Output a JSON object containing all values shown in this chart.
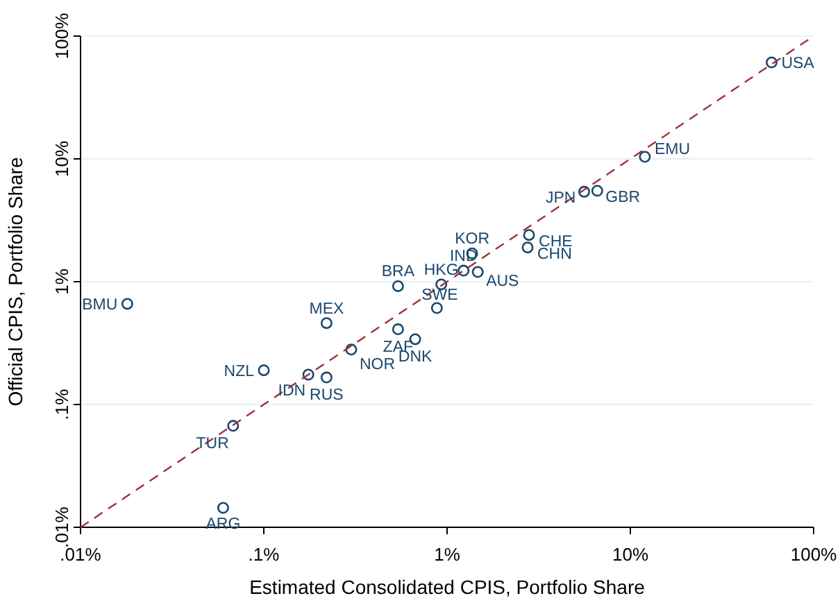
{
  "chart_data": {
    "type": "scatter",
    "xlabel": "Estimated Consolidated CPIS, Portfolio Share",
    "ylabel": "Official CPIS, Portfolio Share",
    "log": "xy",
    "grid": "y",
    "marker": "circle",
    "xlim": [
      0.01,
      100
    ],
    "ylim": [
      0.01,
      100
    ],
    "xticks": [
      {
        "value": 0.01,
        "label": ".01%"
      },
      {
        "value": 0.1,
        "label": ".1%"
      },
      {
        "value": 1,
        "label": "1%"
      },
      {
        "value": 10,
        "label": "10%"
      },
      {
        "value": 100,
        "label": "100%"
      }
    ],
    "yticks": [
      {
        "value": 0.01,
        "label": ".01%"
      },
      {
        "value": 0.1,
        "label": ".1%"
      },
      {
        "value": 1,
        "label": "1%"
      },
      {
        "value": 10,
        "label": "10%"
      },
      {
        "value": 100,
        "label": "100%"
      }
    ],
    "series": [
      {
        "type": "scatter",
        "color": "#1a476f",
        "x": [
          59,
          12,
          5.6,
          6.6,
          2.8,
          2.75,
          1.37,
          1.23,
          1.47,
          0.93,
          0.88,
          0.54,
          0.018,
          0.22,
          0.54,
          0.67,
          0.3,
          0.1,
          0.175,
          0.22,
          0.068,
          0.06
        ],
        "values": [
          61,
          10.4,
          5.4,
          5.5,
          2.4,
          1.9,
          1.7,
          1.23,
          1.2,
          0.95,
          0.61,
          0.92,
          0.66,
          0.46,
          0.41,
          0.34,
          0.28,
          0.19,
          0.175,
          0.166,
          0.067,
          0.0144
        ]
      },
      {
        "type": "line",
        "color": "#a0303a",
        "line_style": "dashed",
        "marker": "none",
        "x": [
          0.01,
          100
        ],
        "values": [
          0.01,
          100
        ]
      }
    ],
    "annotations": [
      {
        "text": "USA",
        "x": 59,
        "y": 61
      },
      {
        "text": "EMU",
        "x": 12,
        "y": 10.4
      },
      {
        "text": "JPN",
        "x": 5.6,
        "y": 5.4
      },
      {
        "text": "GBR",
        "x": 6.6,
        "y": 5.5
      },
      {
        "text": "CHE",
        "x": 2.8,
        "y": 2.4
      },
      {
        "text": "CHN",
        "x": 2.75,
        "y": 1.9
      },
      {
        "text": "KOR",
        "x": 1.37,
        "y": 1.7
      },
      {
        "text": "IND",
        "x": 1.23,
        "y": 1.23
      },
      {
        "text": "AUS",
        "x": 1.47,
        "y": 1.2
      },
      {
        "text": "HKG",
        "x": 0.93,
        "y": 0.95
      },
      {
        "text": "SWE",
        "x": 0.88,
        "y": 0.61
      },
      {
        "text": "BRA",
        "x": 0.54,
        "y": 0.92
      },
      {
        "text": "BMU",
        "x": 0.018,
        "y": 0.66
      },
      {
        "text": "MEX",
        "x": 0.22,
        "y": 0.46
      },
      {
        "text": "ZAF",
        "x": 0.54,
        "y": 0.41
      },
      {
        "text": "DNK",
        "x": 0.67,
        "y": 0.34
      },
      {
        "text": "NOR",
        "x": 0.3,
        "y": 0.28
      },
      {
        "text": "NZL",
        "x": 0.1,
        "y": 0.19
      },
      {
        "text": "IDN",
        "x": 0.175,
        "y": 0.175
      },
      {
        "text": "RUS",
        "x": 0.22,
        "y": 0.166
      },
      {
        "text": "TUR",
        "x": 0.068,
        "y": 0.067
      },
      {
        "text": "ARG",
        "x": 0.06,
        "y": 0.0144
      }
    ]
  }
}
